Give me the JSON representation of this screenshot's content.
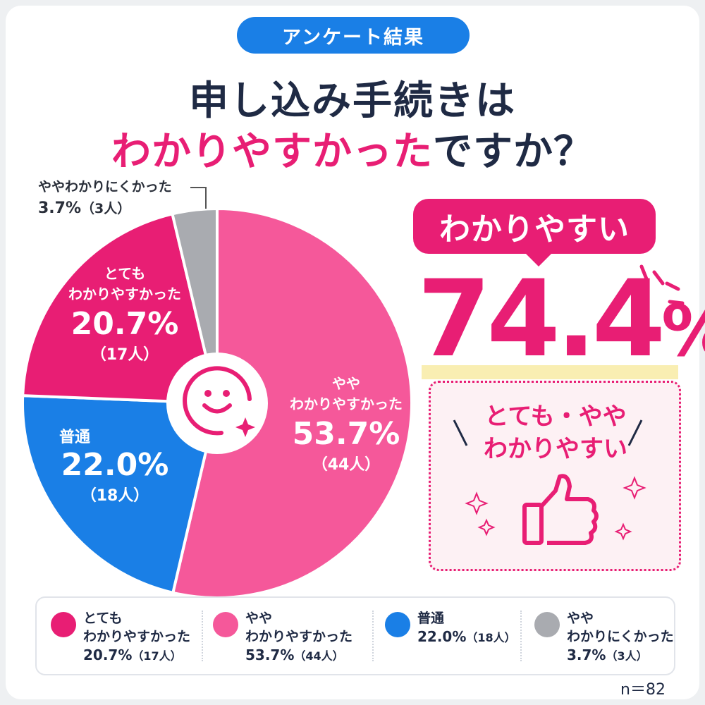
{
  "badge": "アンケート結果",
  "title_line1": "申し込み手続きは",
  "title_line2_highlight": "わかりやすかった",
  "title_line2_rest": "ですか？",
  "chart_data": {
    "type": "pie",
    "categories": [
      "やや わかりやすかった",
      "普通",
      "とても わかりやすかった",
      "やや わかりにくかった"
    ],
    "values": [
      53.7,
      22.0,
      20.7,
      3.7
    ],
    "counts": [
      44,
      18,
      17,
      3
    ],
    "colors": [
      "#f5589a",
      "#1a7fe6",
      "#e81e74",
      "#a9abb0"
    ]
  },
  "slices": {
    "s1_line1": "やや",
    "s1_line2": "わかりやすかった",
    "s1_pct": "53.7%",
    "s1_count": "（44人）",
    "s2_line1": "普通",
    "s2_pct": "22.0%",
    "s2_count": "（18人）",
    "s3_line1": "とても",
    "s3_line2": "わかりやすかった",
    "s3_pct": "20.7%",
    "s3_count": "（17人）",
    "s4_line1": "ややわかりにくかった",
    "s4_pct": "3.7%",
    "s4_count": "（3人）"
  },
  "callout": {
    "bubble": "わかりやすい",
    "big_number": "74.4",
    "big_unit": "%",
    "sub_line1": "とても・やや",
    "sub_line2": "わかりやすい"
  },
  "legend": [
    {
      "line1": "とても",
      "line2": "わかりやすかった",
      "pct": "20.7%",
      "count": "（17人）",
      "color": "#e81e74"
    },
    {
      "line1": "やや",
      "line2": "わかりやすかった",
      "pct": "53.7%",
      "count": "（44人）",
      "color": "#f5589a"
    },
    {
      "line1": "普通",
      "line2": "",
      "pct": "22.0%",
      "count": "（18人）",
      "color": "#1a7fe6"
    },
    {
      "line1": "やや",
      "line2": "わかりにくかった",
      "pct": "3.7%",
      "count": "（3人）",
      "color": "#a9abb0"
    }
  ],
  "sample_size": "n＝82",
  "icons": [
    "smile-icon",
    "thumbs-up-icon",
    "sparkle-icon"
  ]
}
